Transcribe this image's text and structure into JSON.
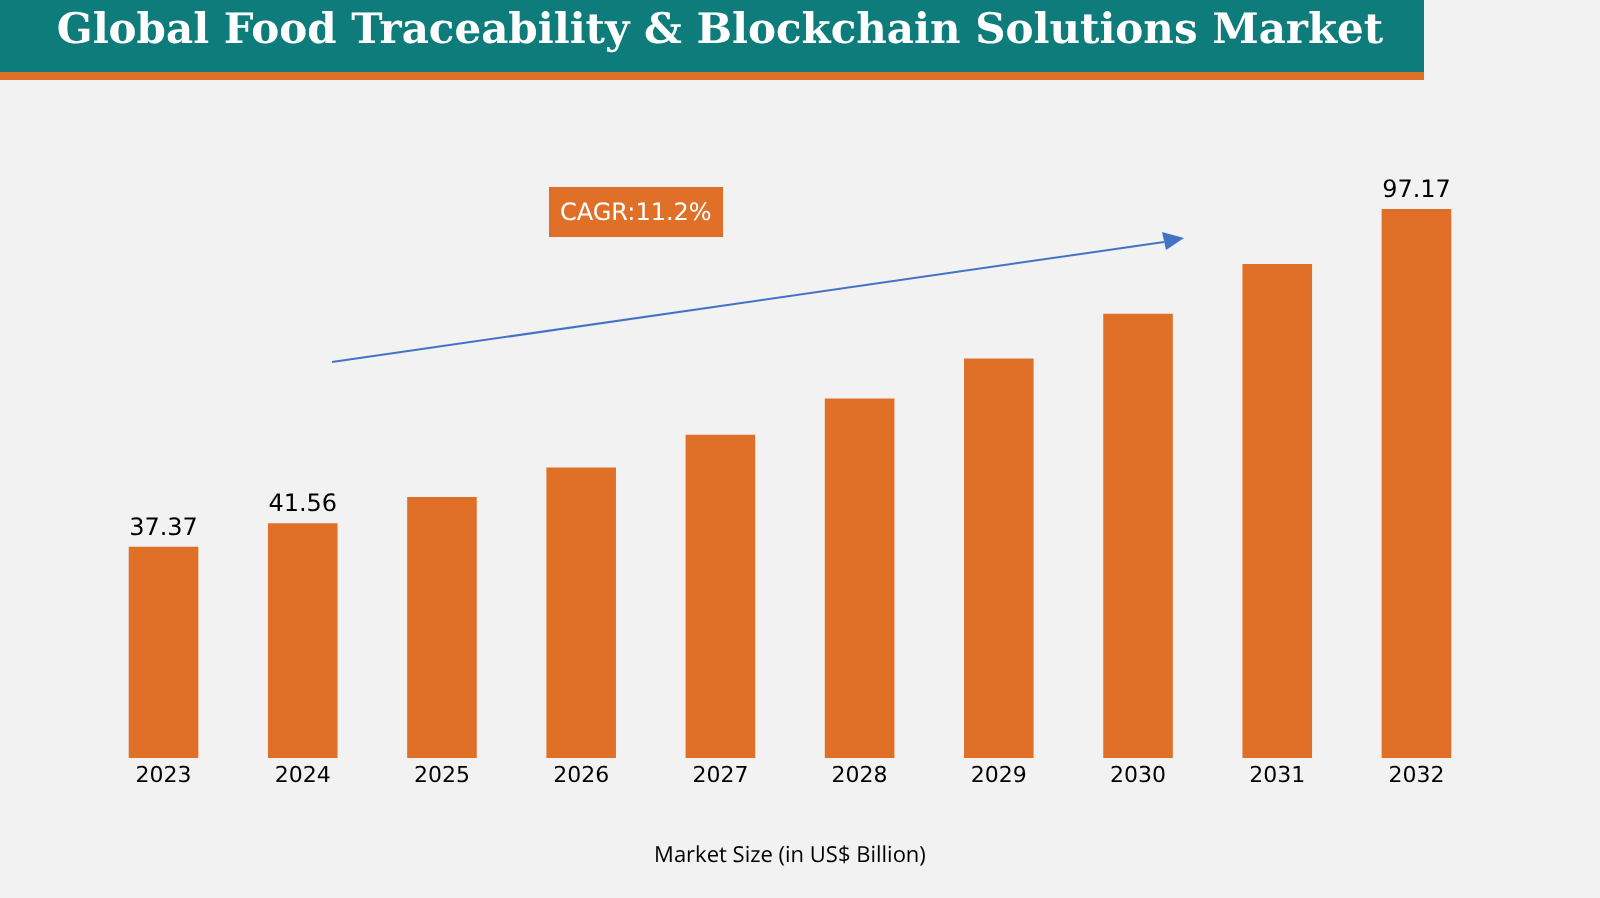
{
  "chart_data": {
    "type": "bar",
    "title": "Global Food Traceability & Blockchain Solutions Market",
    "xlabel": "Market Size (in US$ Billion)",
    "categories": [
      "2023",
      "2024",
      "2025",
      "2026",
      "2027",
      "2028",
      "2029",
      "2030",
      "2031",
      "2032"
    ],
    "values": [
      37.37,
      41.56,
      46.2,
      51.4,
      57.2,
      63.6,
      70.7,
      78.6,
      87.4,
      97.17
    ],
    "value_labels": [
      "37.37",
      "41.56",
      null,
      null,
      null,
      null,
      null,
      null,
      null,
      "97.17"
    ],
    "color": "#e07028",
    "annotations": [
      "CAGR:11.2%"
    ],
    "tick_labels": "x"
  }
}
